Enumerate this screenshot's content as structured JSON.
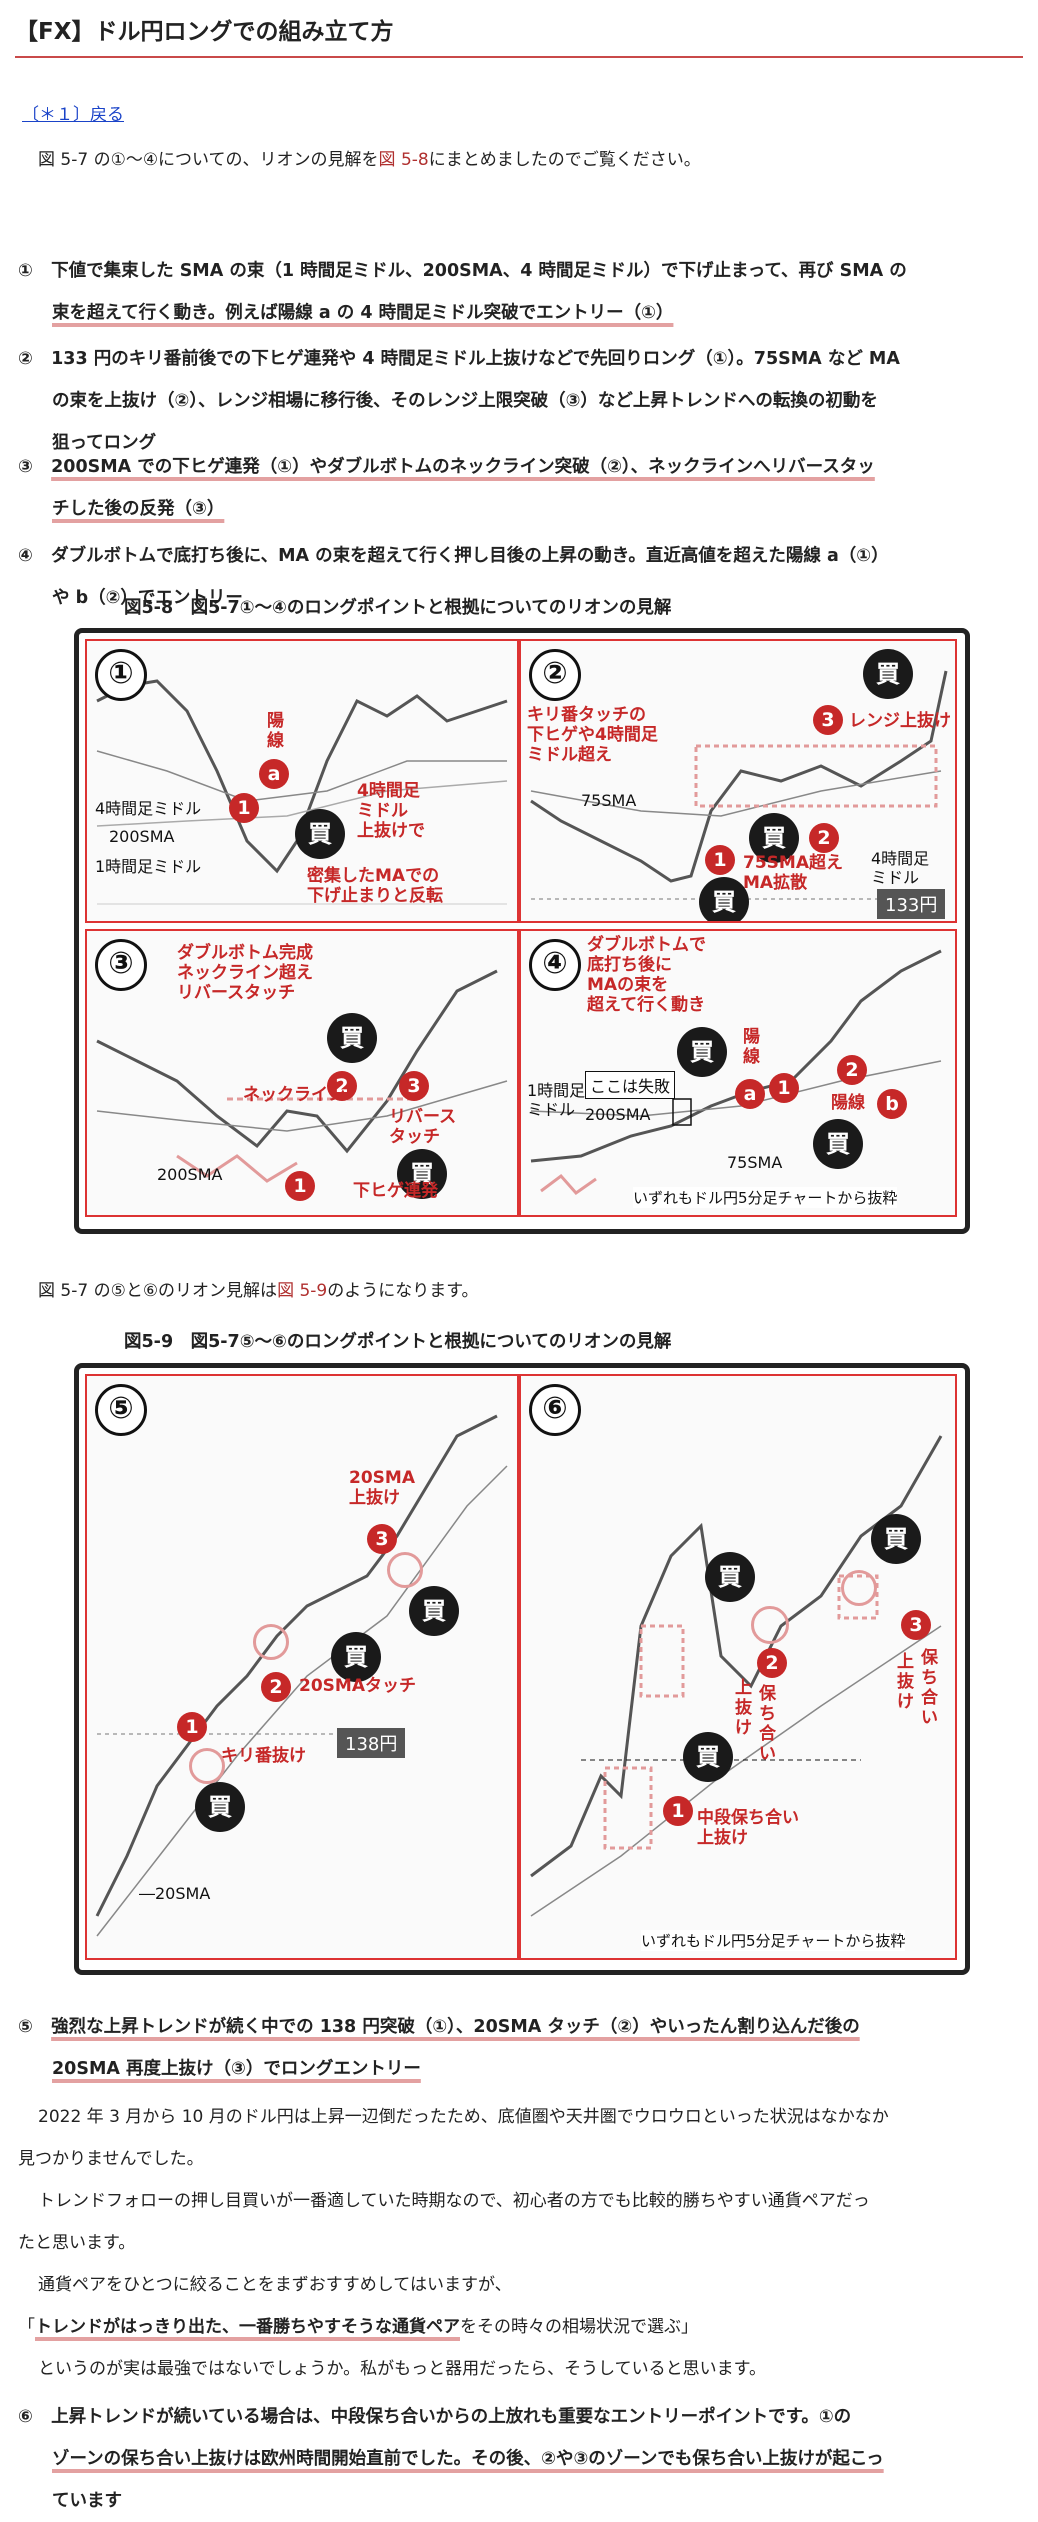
{
  "header": {
    "title": "【FX】ドル円ロングでの組み立て方",
    "back_link": "〔＊１〕戻る"
  },
  "intro1": {
    "before": "図 5-7 の①〜④についての、リオンの見解を",
    "link": "図 5-8",
    "after": "にまとめましたのでご覧ください。"
  },
  "items_a": [
    {
      "num": "①",
      "lines": [
        "下値で集束した SMA の束（1 時間足ミドル、200SMA、4 時間足ミドル）で下げ止まって、再び SMA の",
        "束を超えて行く動き。例えば陽線 a の 4 時間足ミドル突破でエントリー（①）"
      ]
    },
    {
      "num": "②",
      "lines": [
        "133 円のキリ番前後での下ヒゲ連発や 4 時間足ミドル上抜けなどで先回りロング（①）。75SMA など MA",
        "の束を上抜け（②）、レンジ相場に移行後、そのレンジ上限突破（③）など上昇トレンドへの転換の初動を",
        "狙ってロング"
      ]
    },
    {
      "num": "③",
      "lines": [
        "200SMA での下ヒゲ連発（①）やダブルボトムのネックライン突破（②）、ネックラインへリバースタッ",
        "チした後の反発（③）"
      ]
    },
    {
      "num": "④",
      "lines": [
        "ダブルボトムで底打ち後に、MA の束を超えて行く押し目後の上昇の動き。直近高値を超えた陽線 a（①）",
        "や b（②）でエントリー"
      ]
    }
  ],
  "fig8": {
    "caption": "図5-8　図5-7①〜④のロングポイントと根拠についてのリオンの見解",
    "p1": {
      "num": "①",
      "youkou": "陽\n線",
      "a": "a",
      "buy": "買",
      "r1": "1",
      "mid4h": "4時間足ミドル",
      "sma200": "200SMA",
      "mid1h": "1時間足ミドル",
      "break4h": "4時間足\nミドル\n上抜けで",
      "dense": "密集したMAでの\n下げ止まりと反転"
    },
    "p2": {
      "num": "②",
      "touch": "キリ番タッチの\n下ヒゲや4時間足\nミドル超え",
      "sma75": "75SMA",
      "range": "レンジ上抜け",
      "r3": "3",
      "r2": "2",
      "r1": "1",
      "buy": "買",
      "expand": "75SMA超え\nMA拡散",
      "mid4h": "4時間足\nミドル",
      "price": "133円"
    },
    "p3": {
      "num": "③",
      "head": "ダブルボトム完成\nネックライン超え\nリバースタッチ",
      "neck": "ネックライン",
      "r2": "2",
      "r3": "3",
      "r1": "1",
      "buy": "買",
      "reverse": "リバース\nタッチ",
      "sma200": "200SMA",
      "hige": "下ヒゲ連発"
    },
    "p4": {
      "num": "④",
      "head": "ダブルボトムで\n底打ち後に\nMAの束を\n超えて行く動き",
      "youkou": "陽\n線",
      "a": "a",
      "r1": "1",
      "r2": "2",
      "youkou_b": "陽線",
      "b": "b",
      "buy": "買",
      "mid1h": "1時間足\nミドル",
      "fail": "ここは失敗",
      "sma200": "200SMA",
      "sma75": "75SMA",
      "foot": "いずれもドル円5分足チャートから抜粋"
    }
  },
  "intro2": {
    "before": "図 5-7 の⑤と⑥のリオン見解は",
    "link": "図 5-9",
    "after": "のようになります。"
  },
  "fig9": {
    "caption": "図5-9　図5-7⑤〜⑥のロングポイントと根拠についてのリオンの見解",
    "p5": {
      "num": "⑤",
      "sma20up": "20SMA\n上抜け",
      "r3": "3",
      "r2": "2",
      "r1": "1",
      "buy": "買",
      "touch": "20SMAタッチ",
      "kiri": "キリ番抜け",
      "price": "138円",
      "sma20": "―20SMA"
    },
    "p6": {
      "num": "⑥",
      "r1": "1",
      "r2": "2",
      "r3": "3",
      "buy": "買",
      "hoc2": "保\nち\n合\nい",
      "up2": "上\n抜\nけ",
      "hoc3": "保\nち\n合\nい",
      "up3": "上\n抜\nけ",
      "mid": "中段保ち合い\n上抜け",
      "foot": "いずれもドル円5分足チャートから抜粋"
    }
  },
  "item5": {
    "num": "⑤",
    "lines": [
      "強烈な上昇トレンドが続く中での 138 円突破（①）、20SMA タッチ（②）やいったん割り込んだ後の",
      "20SMA 再度上抜け（③）でロングエントリー"
    ]
  },
  "para": {
    "p1": [
      "2022 年 3 月から 10 月のドル円は上昇一辺倒だったため、底値圏や天井圏でウロウロといった状況はなかなか",
      "見つかりませんでした。"
    ],
    "p2": [
      "トレンドフォローの押し目買いが一番適していた時期なので、初心者の方でも比較的勝ちやすい通貨ペアだっ",
      "たと思います。"
    ],
    "p3": "通貨ペアをひとつに絞ることをまずおすすめしてはいますが、",
    "quote_open": "「",
    "quote_bold": "トレンドがはっきり出た、一番勝ちやすそうな通貨ペア",
    "quote_rest": "をその時々の相場状況で選ぶ」",
    "p4": "というのが実は最強ではないでしょうか。私がもっと器用だったら、そうしていると思います。"
  },
  "item6": {
    "num": "⑥",
    "lines": [
      "上昇トレンドが続いている場合は、中段保ち合いからの上放れも重要なエントリーポイントです。①の",
      "ゾーンの保ち合い上抜けは欧州時間開始直前でした。その後、②や③のゾーンでも保ち合い上抜けが起こっ",
      "ています"
    ]
  }
}
